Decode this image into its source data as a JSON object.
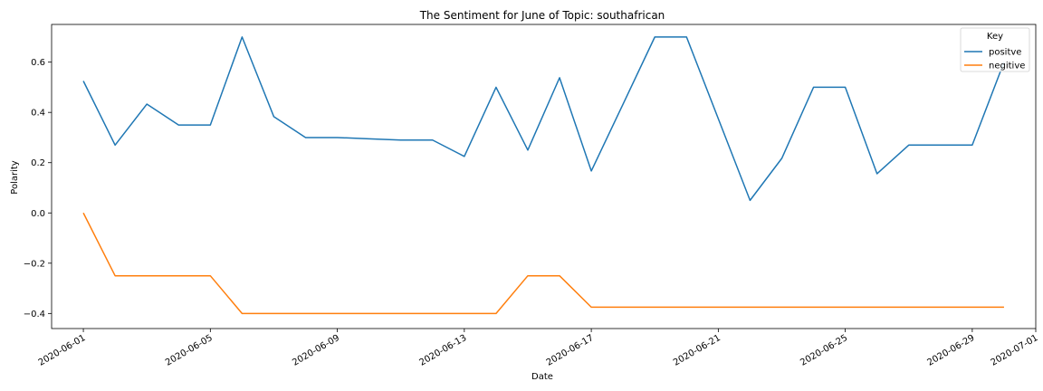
{
  "chart_data": {
    "type": "line",
    "title": "The Sentiment for June of Topic: southafrican",
    "xlabel": "Date",
    "ylabel": "Polarity",
    "x": [
      "2020-06-01",
      "2020-06-02",
      "2020-06-03",
      "2020-06-04",
      "2020-06-05",
      "2020-06-06",
      "2020-06-07",
      "2020-06-08",
      "2020-06-09",
      "2020-06-10",
      "2020-06-11",
      "2020-06-12",
      "2020-06-13",
      "2020-06-14",
      "2020-06-15",
      "2020-06-16",
      "2020-06-17",
      "2020-06-18",
      "2020-06-19",
      "2020-06-20",
      "2020-06-21",
      "2020-06-22",
      "2020-06-23",
      "2020-06-24",
      "2020-06-25",
      "2020-06-26",
      "2020-06-27",
      "2020-06-28",
      "2020-06-29",
      "2020-06-30"
    ],
    "xlim": [
      "2020-05-31",
      "2020-07-01"
    ],
    "ylim": [
      -0.46,
      0.75
    ],
    "xticks": [
      "2020-06-01",
      "2020-06-05",
      "2020-06-09",
      "2020-06-13",
      "2020-06-17",
      "2020-06-21",
      "2020-06-25",
      "2020-06-29",
      "2020-07-01"
    ],
    "yticks": [
      -0.4,
      -0.2,
      0.0,
      0.2,
      0.4,
      0.6
    ],
    "ytick_labels": [
      "−0.4",
      "−0.2",
      "0.0",
      "0.2",
      "0.4",
      "0.6"
    ],
    "grid": false,
    "legend": {
      "title": "Key",
      "position": "top-right"
    },
    "series": [
      {
        "name": "positve",
        "color": "#1f77b4",
        "values": [
          0.525,
          0.27,
          0.433,
          0.35,
          0.35,
          0.7,
          0.383,
          0.3,
          0.3,
          0.295,
          0.29,
          0.29,
          0.225,
          0.5,
          0.25,
          0.538,
          0.167,
          0.433,
          0.7,
          0.7,
          0.375,
          0.05,
          0.217,
          0.5,
          0.5,
          0.156,
          0.27,
          0.27,
          0.27,
          0.6
        ]
      },
      {
        "name": "negitive",
        "color": "#ff7f0e",
        "values": [
          0.0,
          -0.25,
          -0.25,
          -0.25,
          -0.25,
          -0.4,
          -0.4,
          -0.4,
          -0.4,
          -0.4,
          -0.4,
          -0.4,
          -0.4,
          -0.4,
          -0.25,
          -0.25,
          -0.375,
          -0.375,
          -0.375,
          -0.375,
          -0.375,
          -0.375,
          -0.375,
          -0.375,
          -0.375,
          -0.375,
          -0.375,
          -0.375,
          -0.375,
          -0.375
        ]
      }
    ]
  }
}
